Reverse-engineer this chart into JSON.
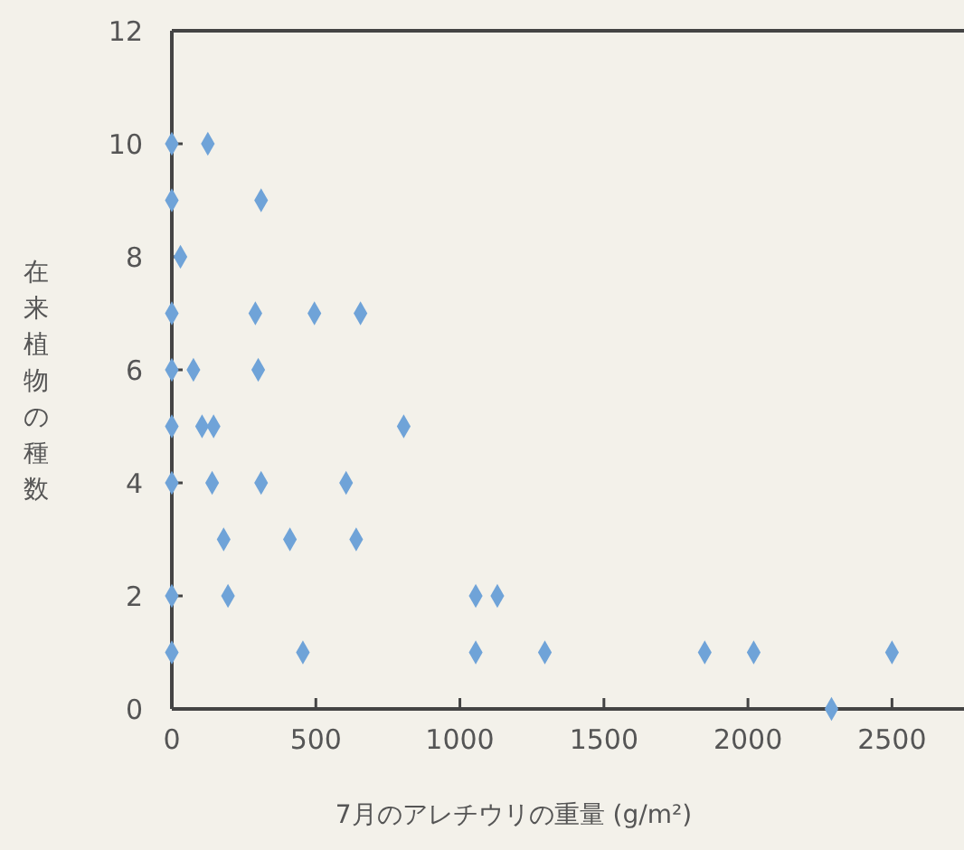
{
  "chart_data": {
    "type": "scatter",
    "xlabel": "7月のアレチウリの重量 (g/m²)",
    "ylabel": "在来植物の種数",
    "marker": "diamond",
    "color": "#6fa3d8",
    "grid": false,
    "x": [
      0,
      125,
      0,
      310,
      30,
      0,
      290,
      495,
      655,
      0,
      75,
      300,
      0,
      105,
      145,
      805,
      0,
      140,
      310,
      605,
      180,
      410,
      640,
      0,
      195,
      1055,
      1130,
      0,
      455,
      1055,
      1295,
      1850,
      2020,
      2500,
      2290
    ],
    "values": [
      10,
      10,
      9,
      9,
      8,
      7,
      7,
      7,
      7,
      6,
      6,
      6,
      5,
      5,
      5,
      5,
      4,
      4,
      4,
      4,
      3,
      3,
      3,
      2,
      2,
      2,
      2,
      1,
      1,
      1,
      1,
      1,
      1,
      1,
      0
    ],
    "xlim": [
      0,
      2750
    ],
    "xticks": [
      0,
      500,
      1000,
      1500,
      2000,
      2500
    ],
    "ylim": [
      0,
      12
    ],
    "yticks": [
      0,
      2,
      4,
      6,
      8,
      10,
      12
    ]
  }
}
